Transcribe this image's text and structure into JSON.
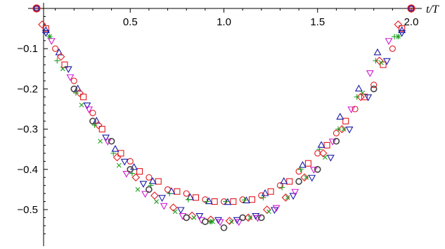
{
  "chart_data": {
    "type": "scatter",
    "title": "",
    "xlabel": "t/T",
    "ylabel": "",
    "xlim": [
      0,
      2.03
    ],
    "ylim": [
      -0.57,
      0.005
    ],
    "x_ticks": [
      0.5,
      1.0,
      1.5,
      2.0
    ],
    "x_tick_labels": [
      "0.5",
      "1.0",
      "1.5",
      "2.0"
    ],
    "y_ticks": [
      -0.1,
      -0.2,
      -0.3,
      -0.4,
      -0.5
    ],
    "y_tick_labels": [
      "−0.1",
      "−0.2",
      "−0.3",
      "−0.4",
      "−0.5"
    ],
    "grid": false,
    "legend": "none",
    "marker_colors": {
      "red": "#e0191e",
      "green": "#1f9e1f",
      "blue": "#1a1aa8",
      "magenta": "#d21bd2",
      "black": "#444444"
    },
    "series": [
      {
        "marker": "circle",
        "color": "red",
        "x": [
          0.0,
          0.1,
          0.2,
          0.3,
          0.4,
          0.5,
          0.6,
          0.7,
          0.8,
          0.9,
          1.0,
          1.1,
          1.2,
          1.3,
          1.4,
          1.5,
          1.6,
          1.7,
          1.8,
          1.9,
          2.0
        ],
        "y": [
          0.0,
          -0.1,
          -0.18,
          -0.26,
          -0.33,
          -0.38,
          -0.42,
          -0.45,
          -0.46,
          -0.475,
          -0.48,
          -0.475,
          -0.465,
          -0.44,
          -0.405,
          -0.36,
          -0.31,
          -0.25,
          -0.19,
          -0.1,
          0.0
        ]
      },
      {
        "marker": "square",
        "color": "red",
        "x": [
          0.05,
          0.15,
          0.25,
          0.35,
          0.45,
          0.55,
          0.65,
          0.75,
          0.85,
          0.95,
          1.05,
          1.15,
          1.25,
          1.35,
          1.45,
          1.55,
          1.65,
          1.75,
          1.85,
          1.95
        ],
        "y": [
          -0.05,
          -0.14,
          -0.22,
          -0.3,
          -0.36,
          -0.405,
          -0.43,
          -0.455,
          -0.47,
          -0.48,
          -0.48,
          -0.475,
          -0.455,
          -0.43,
          -0.385,
          -0.34,
          -0.28,
          -0.22,
          -0.14,
          -0.05
        ]
      },
      {
        "marker": "triangle-up",
        "color": "blue",
        "x": [
          0.05,
          0.12,
          0.22,
          0.32,
          0.42,
          0.52,
          0.62,
          0.72,
          0.82,
          0.92,
          1.02,
          1.12,
          1.22,
          1.32,
          1.42,
          1.52,
          1.62,
          1.72,
          1.82,
          1.95
        ],
        "y": [
          -0.055,
          -0.11,
          -0.2,
          -0.28,
          -0.35,
          -0.395,
          -0.43,
          -0.455,
          -0.47,
          -0.48,
          -0.482,
          -0.478,
          -0.46,
          -0.43,
          -0.39,
          -0.34,
          -0.27,
          -0.2,
          -0.11,
          -0.055
        ]
      },
      {
        "marker": "triangle-down",
        "color": "blue",
        "x": [
          0.05,
          0.17,
          0.27,
          0.37,
          0.47,
          0.57,
          0.67,
          0.77,
          0.87,
          0.97,
          1.07,
          1.17,
          1.27,
          1.37,
          1.47,
          1.57,
          1.67,
          1.77,
          1.87,
          1.95
        ],
        "y": [
          -0.06,
          -0.15,
          -0.24,
          -0.32,
          -0.38,
          -0.435,
          -0.47,
          -0.5,
          -0.515,
          -0.525,
          -0.525,
          -0.515,
          -0.5,
          -0.465,
          -0.42,
          -0.37,
          -0.3,
          -0.22,
          -0.13,
          -0.06
        ]
      },
      {
        "marker": "diamond",
        "color": "red",
        "x": [
          0.03,
          0.13,
          0.23,
          0.33,
          0.43,
          0.53,
          0.63,
          0.73,
          0.83,
          0.93,
          1.03,
          1.13,
          1.23,
          1.33,
          1.43,
          1.53,
          1.63,
          1.73,
          1.83,
          1.93
        ],
        "y": [
          -0.04,
          -0.12,
          -0.21,
          -0.29,
          -0.37,
          -0.42,
          -0.465,
          -0.495,
          -0.515,
          -0.525,
          -0.528,
          -0.52,
          -0.5,
          -0.47,
          -0.42,
          -0.36,
          -0.3,
          -0.22,
          -0.13,
          -0.04
        ]
      },
      {
        "marker": "triangle-down",
        "color": "magenta",
        "x": [
          0.08,
          0.18,
          0.28,
          0.38,
          0.48,
          0.58,
          0.68,
          0.78,
          0.88,
          0.98,
          1.08,
          1.18,
          1.28,
          1.38,
          1.48,
          1.58,
          1.68,
          1.78,
          1.88
        ],
        "y": [
          -0.08,
          -0.17,
          -0.25,
          -0.33,
          -0.41,
          -0.46,
          -0.49,
          -0.515,
          -0.525,
          -0.53,
          -0.53,
          -0.52,
          -0.495,
          -0.455,
          -0.4,
          -0.33,
          -0.25,
          -0.16,
          -0.08
        ]
      },
      {
        "marker": "plus",
        "color": "green",
        "x": [
          0.11,
          0.21,
          0.31,
          0.41,
          0.51,
          0.61,
          0.71,
          0.81,
          0.91,
          1.01,
          1.11,
          1.21,
          1.31,
          1.41,
          1.51,
          1.61,
          1.71,
          1.81,
          1.91
        ],
        "y": [
          -0.13,
          -0.21,
          -0.29,
          -0.36,
          -0.41,
          -0.44,
          -0.46,
          -0.475,
          -0.48,
          -0.48,
          -0.476,
          -0.47,
          -0.445,
          -0.4,
          -0.35,
          -0.3,
          -0.22,
          -0.13,
          -0.07
        ]
      },
      {
        "marker": "cross",
        "color": "green",
        "x": [
          0.14,
          0.24,
          0.34,
          0.44,
          0.54,
          0.64,
          0.74,
          0.84,
          0.94,
          1.04,
          1.14,
          1.24,
          1.34,
          1.44,
          1.54,
          1.64,
          1.74,
          1.84
        ],
        "y": [
          -0.15,
          -0.24,
          -0.33,
          -0.39,
          -0.45,
          -0.48,
          -0.505,
          -0.52,
          -0.53,
          -0.53,
          -0.52,
          -0.505,
          -0.47,
          -0.42,
          -0.37,
          -0.3,
          -0.21,
          -0.135
        ]
      },
      {
        "marker": "asterisk",
        "color": "green",
        "x": [
          0.07,
          0.93,
          1.93
        ],
        "y": [
          -0.07,
          -0.53,
          -0.07
        ]
      },
      {
        "marker": "open-circle-thick",
        "color": "black",
        "x": [
          0.2,
          0.3,
          0.4,
          0.5,
          0.6,
          0.8,
          0.9,
          1.0,
          1.1,
          1.2,
          1.4,
          1.5,
          1.6,
          1.8
        ],
        "y": [
          -0.2,
          -0.28,
          -0.33,
          -0.4,
          -0.45,
          -0.52,
          -0.53,
          -0.545,
          -0.52,
          -0.52,
          -0.43,
          -0.4,
          -0.33,
          -0.2
        ]
      }
    ]
  }
}
